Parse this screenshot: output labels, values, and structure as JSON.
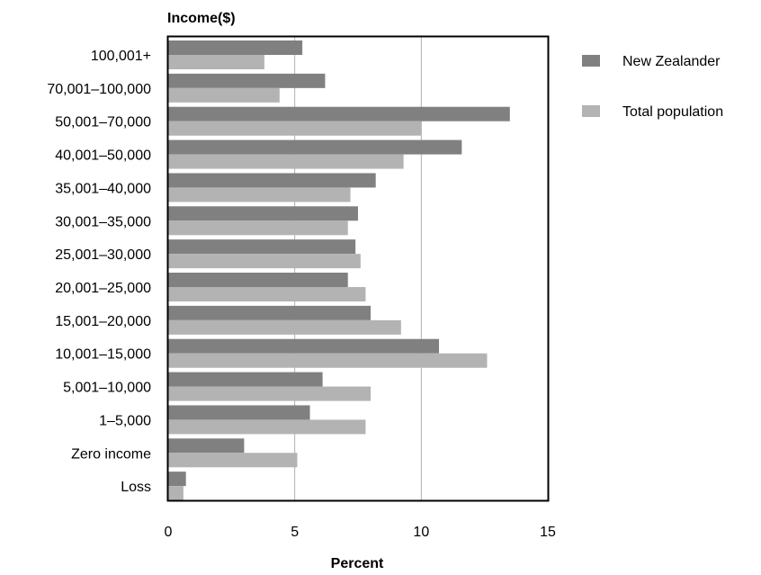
{
  "chart_data": {
    "type": "bar",
    "orientation": "horizontal",
    "ylabel": "Income($)",
    "xlabel": "Percent",
    "xlim": [
      0,
      15
    ],
    "xticks": [
      "0",
      "5",
      "10",
      "15"
    ],
    "grid": true,
    "legend_position": "right",
    "categories": [
      "100,001+",
      "70,001–100,000",
      "50,001–70,000",
      "40,001–50,000",
      "35,001–40,000",
      "30,001–35,000",
      "25,001–30,000",
      "20,001–25,000",
      "15,001–20,000",
      "10,001–15,000",
      "5,001–10,000",
      "1–5,000",
      "Zero income",
      "Loss"
    ],
    "series": [
      {
        "name": "New Zealander",
        "color": "#808080",
        "values": [
          5.3,
          6.2,
          13.5,
          11.6,
          8.2,
          7.5,
          7.4,
          7.1,
          8.0,
          10.7,
          6.1,
          5.6,
          3.0,
          0.7
        ]
      },
      {
        "name": "Total population",
        "color": "#b3b3b3",
        "values": [
          3.8,
          4.4,
          10.0,
          9.3,
          7.2,
          7.1,
          7.6,
          7.8,
          9.2,
          12.6,
          8.0,
          7.8,
          5.1,
          0.6
        ]
      }
    ]
  }
}
